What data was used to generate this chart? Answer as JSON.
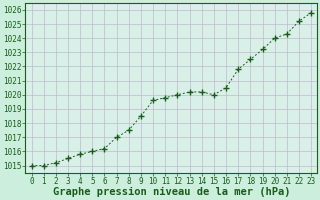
{
  "x": [
    0,
    1,
    2,
    3,
    4,
    5,
    6,
    7,
    8,
    9,
    10,
    11,
    12,
    13,
    14,
    15,
    16,
    17,
    18,
    19,
    20,
    21,
    22,
    23
  ],
  "y": [
    1015.0,
    1015.0,
    1015.2,
    1015.5,
    1015.8,
    1016.0,
    1016.2,
    1017.0,
    1017.5,
    1018.5,
    1019.6,
    1019.8,
    1020.0,
    1020.2,
    1020.2,
    1020.0,
    1020.5,
    1021.8,
    1022.5,
    1023.2,
    1024.0,
    1024.3,
    1025.2,
    1025.8
  ],
  "line_color": "#1a5c1a",
  "marker_color": "#1a5c1a",
  "bg_color": "#cceedd",
  "plot_bg_color": "#d8f0e8",
  "grid_color": "#c0b8cc",
  "xlabel": "Graphe pression niveau de la mer (hPa)",
  "xlabel_color": "#1a5c1a",
  "ylim_min": 1014.5,
  "ylim_max": 1026.5,
  "xlim_min": -0.5,
  "xlim_max": 23.5,
  "yticks": [
    1015,
    1016,
    1017,
    1018,
    1019,
    1020,
    1021,
    1022,
    1023,
    1024,
    1025,
    1026
  ],
  "xticks": [
    0,
    1,
    2,
    3,
    4,
    5,
    6,
    7,
    8,
    9,
    10,
    11,
    12,
    13,
    14,
    15,
    16,
    17,
    18,
    19,
    20,
    21,
    22,
    23
  ],
  "tick_color": "#1a5c1a",
  "tick_fontsize": 5.5,
  "xlabel_fontsize": 7.5,
  "border_color": "#1a5c1a"
}
